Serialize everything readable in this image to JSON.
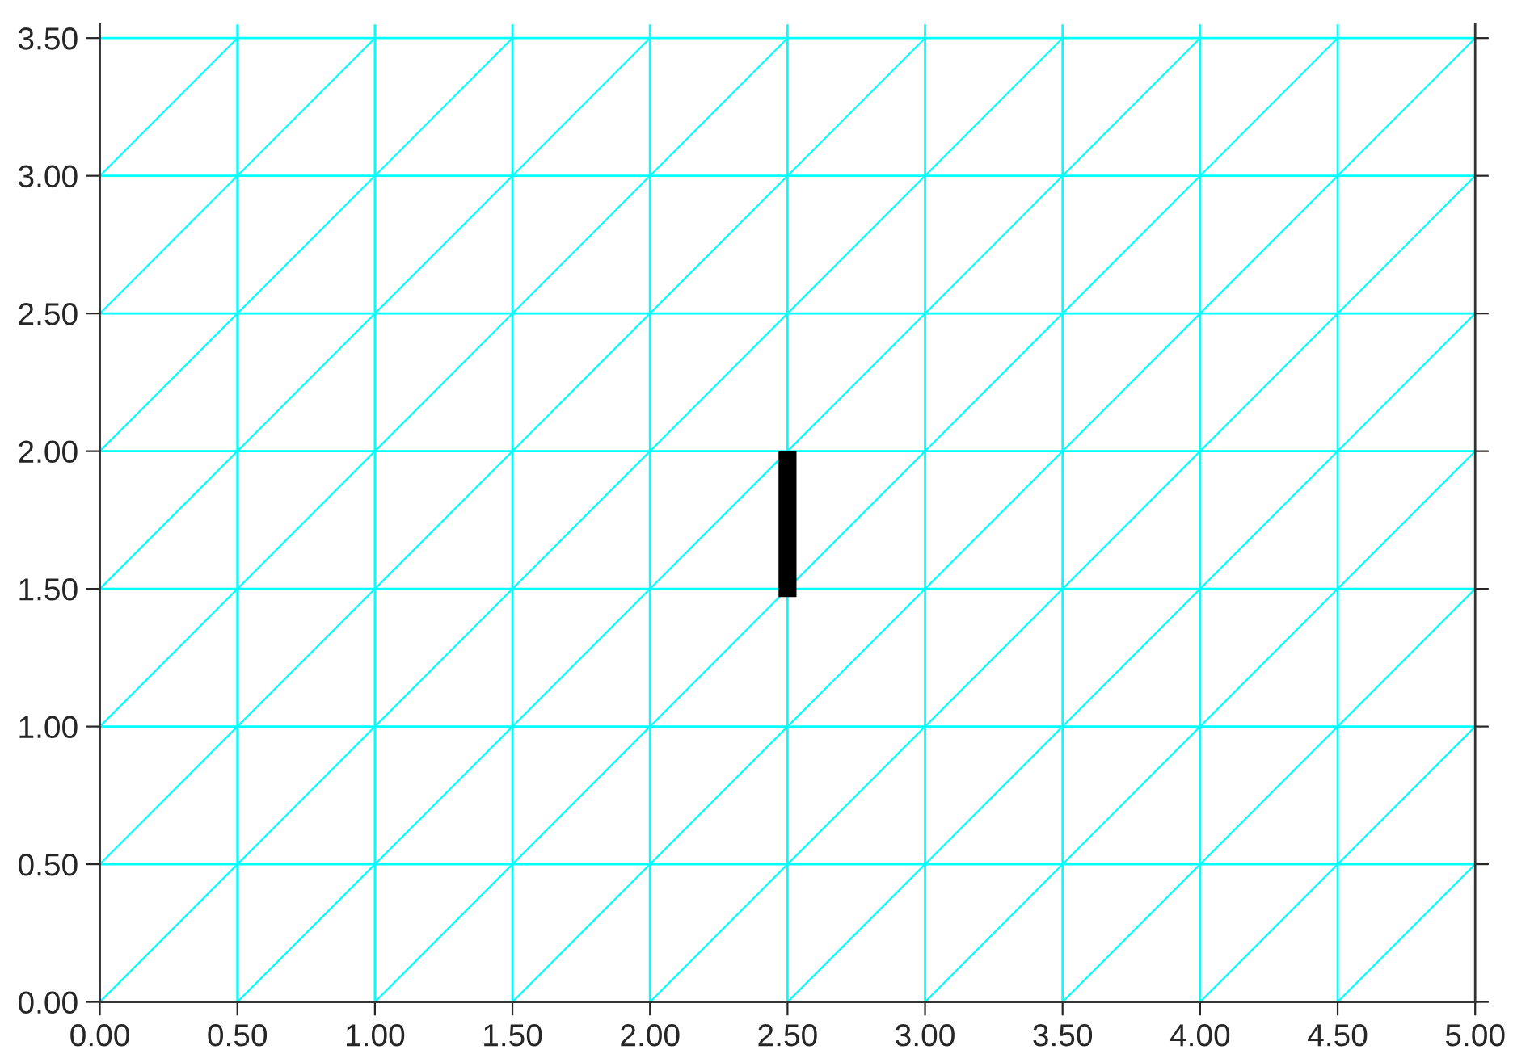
{
  "chart_data": {
    "type": "line",
    "series": [
      {
        "color": "#00ffff",
        "x": [
          0,
          0.5,
          null,
          0,
          1,
          null,
          0,
          1.5,
          null,
          0,
          2,
          null,
          0,
          2.5,
          null,
          0,
          3,
          null,
          0,
          3.5,
          null,
          0.5,
          4,
          null,
          1,
          4.5,
          null,
          1.5,
          5,
          null,
          2,
          5,
          null,
          2.5,
          5,
          null,
          3,
          5,
          null,
          3.5,
          5,
          null,
          4,
          5,
          null,
          4.5,
          5
        ],
        "values": [
          3,
          3.5,
          null,
          2.5,
          3.5,
          null,
          2,
          3.5,
          null,
          1.5,
          3.5,
          null,
          1,
          3.5,
          null,
          0.5,
          3.5,
          null,
          0,
          3.5,
          null,
          0,
          3.5,
          null,
          0,
          3.5,
          null,
          0,
          3.5,
          null,
          0,
          3,
          null,
          0,
          2.5,
          null,
          0,
          2,
          null,
          0,
          1.5,
          null,
          0,
          1,
          null,
          0,
          0.5
        ]
      },
      {
        "color": "#000000",
        "x": [
          2.5,
          2.5
        ],
        "values": [
          1.47,
          2.0
        ]
      }
    ],
    "xlim": [
      0,
      5
    ],
    "ylim": [
      0,
      3.55
    ],
    "xticks": [
      {
        "value": 0,
        "label": "0.00"
      },
      {
        "value": 0.5,
        "label": "0.50"
      },
      {
        "value": 1,
        "label": "1.00"
      },
      {
        "value": 1.5,
        "label": "1.50"
      },
      {
        "value": 2,
        "label": "2.00"
      },
      {
        "value": 2.5,
        "label": "2.50"
      },
      {
        "value": 3,
        "label": "3.00"
      },
      {
        "value": 3.5,
        "label": "3.50"
      },
      {
        "value": 4,
        "label": "4.00"
      },
      {
        "value": 4.5,
        "label": "4.50"
      },
      {
        "value": 5,
        "label": "5.00"
      }
    ],
    "yticks": [
      {
        "value": 0,
        "label": "0.00"
      },
      {
        "value": 0.5,
        "label": "0.50"
      },
      {
        "value": 1,
        "label": "1.00"
      },
      {
        "value": 1.5,
        "label": "1.50"
      },
      {
        "value": 2,
        "label": "2.00"
      },
      {
        "value": 2.5,
        "label": "2.50"
      },
      {
        "value": 3,
        "label": "3.00"
      },
      {
        "value": 3.5,
        "label": "3.50"
      }
    ],
    "grid": true,
    "legend": false
  }
}
